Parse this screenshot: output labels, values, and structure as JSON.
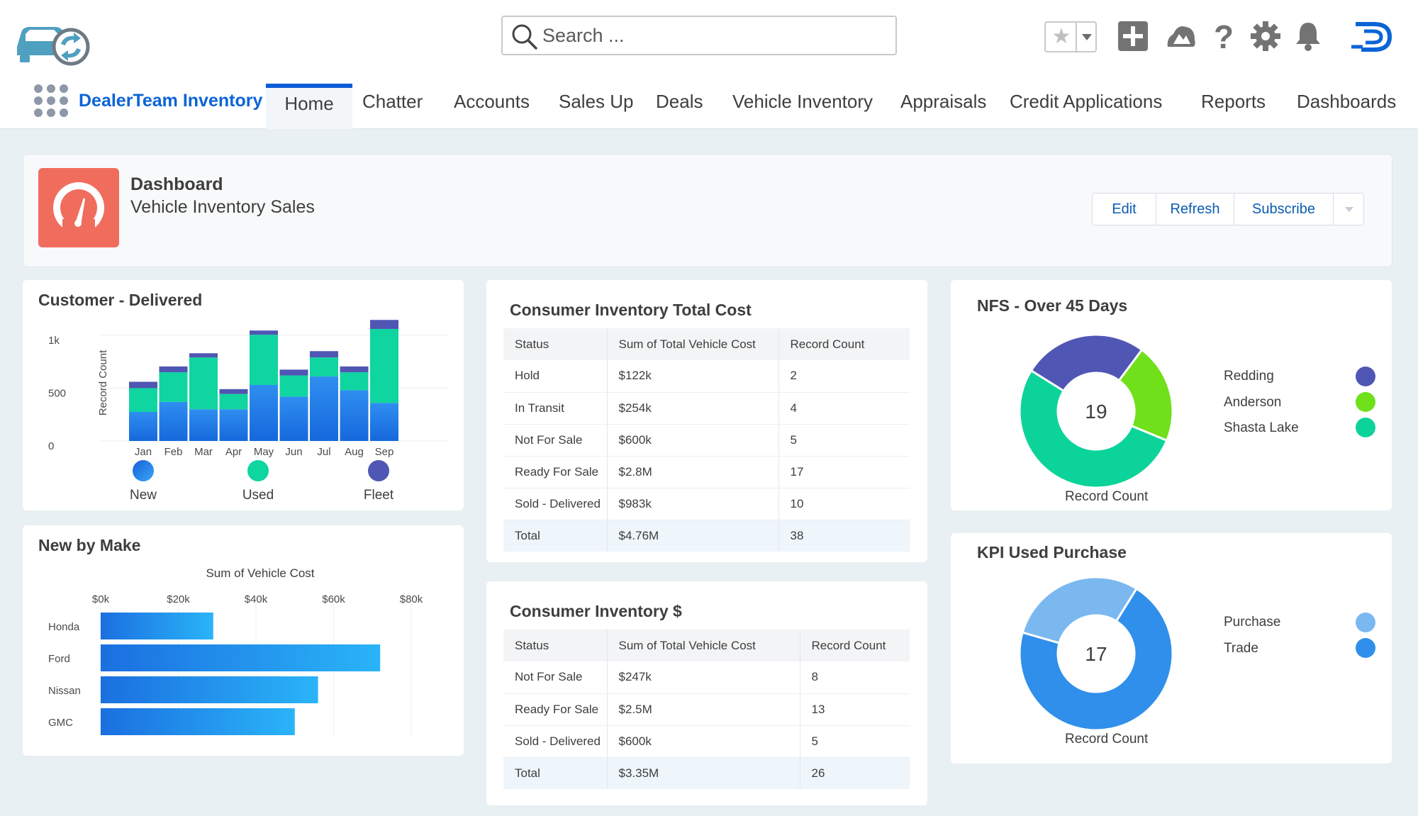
{
  "header": {
    "search_placeholder": "Search ...",
    "app_name": "DealerTeam Inventory",
    "tabs": [
      "Home",
      "Chatter",
      "Accounts",
      "Sales Up",
      "Deals",
      "Vehicle Inventory",
      "Appraisals",
      "Credit Applications",
      "Reports",
      "Dashboards"
    ],
    "active_tab": "Home",
    "icons": [
      "favorites-star-icon",
      "add-icon",
      "trailhead-icon",
      "help-icon",
      "setup-gear-icon",
      "notifications-bell-icon",
      "dealerteam-logo"
    ]
  },
  "dashboard": {
    "kicker": "Dashboard",
    "title": "Vehicle Inventory Sales",
    "buttons": [
      "Edit",
      "Refresh",
      "Subscribe"
    ]
  },
  "colors": {
    "new": "#2478e6",
    "used": "#0fd5a0",
    "fleet": "#4f56b3",
    "redding": "#4f56b3",
    "anderson": "#6fe01a",
    "shasta": "#0cd39a",
    "purchase": "#7bb8f0",
    "trade": "#2f8fea",
    "accent": "#0b5cd7",
    "dash_icon": "#f06d5e"
  },
  "customer_delivered": {
    "title": "Customer - Delivered",
    "chart_data": {
      "type": "bar",
      "stacked": true,
      "categories": [
        "Jan",
        "Feb",
        "Mar",
        "Apr",
        "May",
        "Jun",
        "Jul",
        "Aug",
        "Sep"
      ],
      "series": [
        {
          "name": "New",
          "values": [
            275,
            370,
            300,
            300,
            530,
            420,
            610,
            480,
            360
          ]
        },
        {
          "name": "Used",
          "values": [
            225,
            280,
            490,
            145,
            475,
            200,
            180,
            170,
            700
          ]
        },
        {
          "name": "Fleet",
          "values": [
            60,
            55,
            40,
            45,
            40,
            55,
            60,
            55,
            85
          ]
        }
      ],
      "ylabel": "Record Count",
      "yticks": [
        "0",
        "500",
        "1k"
      ],
      "ylim": [
        0,
        1100
      ],
      "legend": [
        "New",
        "Used",
        "Fleet"
      ]
    }
  },
  "new_by_make": {
    "title": "New by Make",
    "chart_data": {
      "type": "bar",
      "orientation": "horizontal",
      "title": "Sum of Vehicle Cost",
      "categories": [
        "Honda",
        "Ford",
        "Nissan",
        "GMC"
      ],
      "values": [
        29000,
        72000,
        56000,
        50000
      ],
      "xticks": [
        "$0k",
        "$20k",
        "$40k",
        "$60k",
        "$80k"
      ],
      "xlim": [
        0,
        80000
      ]
    }
  },
  "total_cost_table": {
    "title": "Consumer Inventory Total Cost",
    "columns": [
      "Status",
      "Sum of Total Vehicle Cost",
      "Record Count"
    ],
    "rows": [
      [
        "Hold",
        "$122k",
        "2"
      ],
      [
        "In Transit",
        "$254k",
        "4"
      ],
      [
        "Not For Sale",
        "$600k",
        "5"
      ],
      [
        "Ready For Sale",
        "$2.8M",
        "17"
      ],
      [
        "Sold - Delivered",
        "$983k",
        "10"
      ],
      [
        "Total",
        "$4.76M",
        "38"
      ]
    ]
  },
  "inventory_dollars_table": {
    "title": "Consumer Inventory $",
    "columns": [
      "Status",
      "Sum of Total Vehicle Cost",
      "Record Count"
    ],
    "rows": [
      [
        "Not For Sale",
        "$247k",
        "8"
      ],
      [
        "Ready For Sale",
        "$2.5M",
        "13"
      ],
      [
        "Sold - Delivered",
        "$600k",
        "5"
      ],
      [
        "Total",
        "$3.35M",
        "26"
      ]
    ]
  },
  "nfs_over_45": {
    "title": "NFS - Over  45 Days",
    "center_value": "19",
    "footer": "Record Count",
    "legend": [
      "Redding",
      "Anderson",
      "Shasta Lake"
    ],
    "chart_data": {
      "type": "pie",
      "donut": true,
      "categories": [
        "Redding",
        "Anderson",
        "Shasta Lake"
      ],
      "values": [
        5,
        4,
        10
      ],
      "total": 19
    }
  },
  "kpi_used_purchase": {
    "title": "KPI Used Purchase",
    "center_value": "17",
    "footer": "Record Count",
    "legend": [
      "Purchase",
      "Trade"
    ],
    "chart_data": {
      "type": "pie",
      "donut": true,
      "categories": [
        "Purchase",
        "Trade"
      ],
      "values": [
        5,
        12
      ],
      "total": 17
    }
  }
}
